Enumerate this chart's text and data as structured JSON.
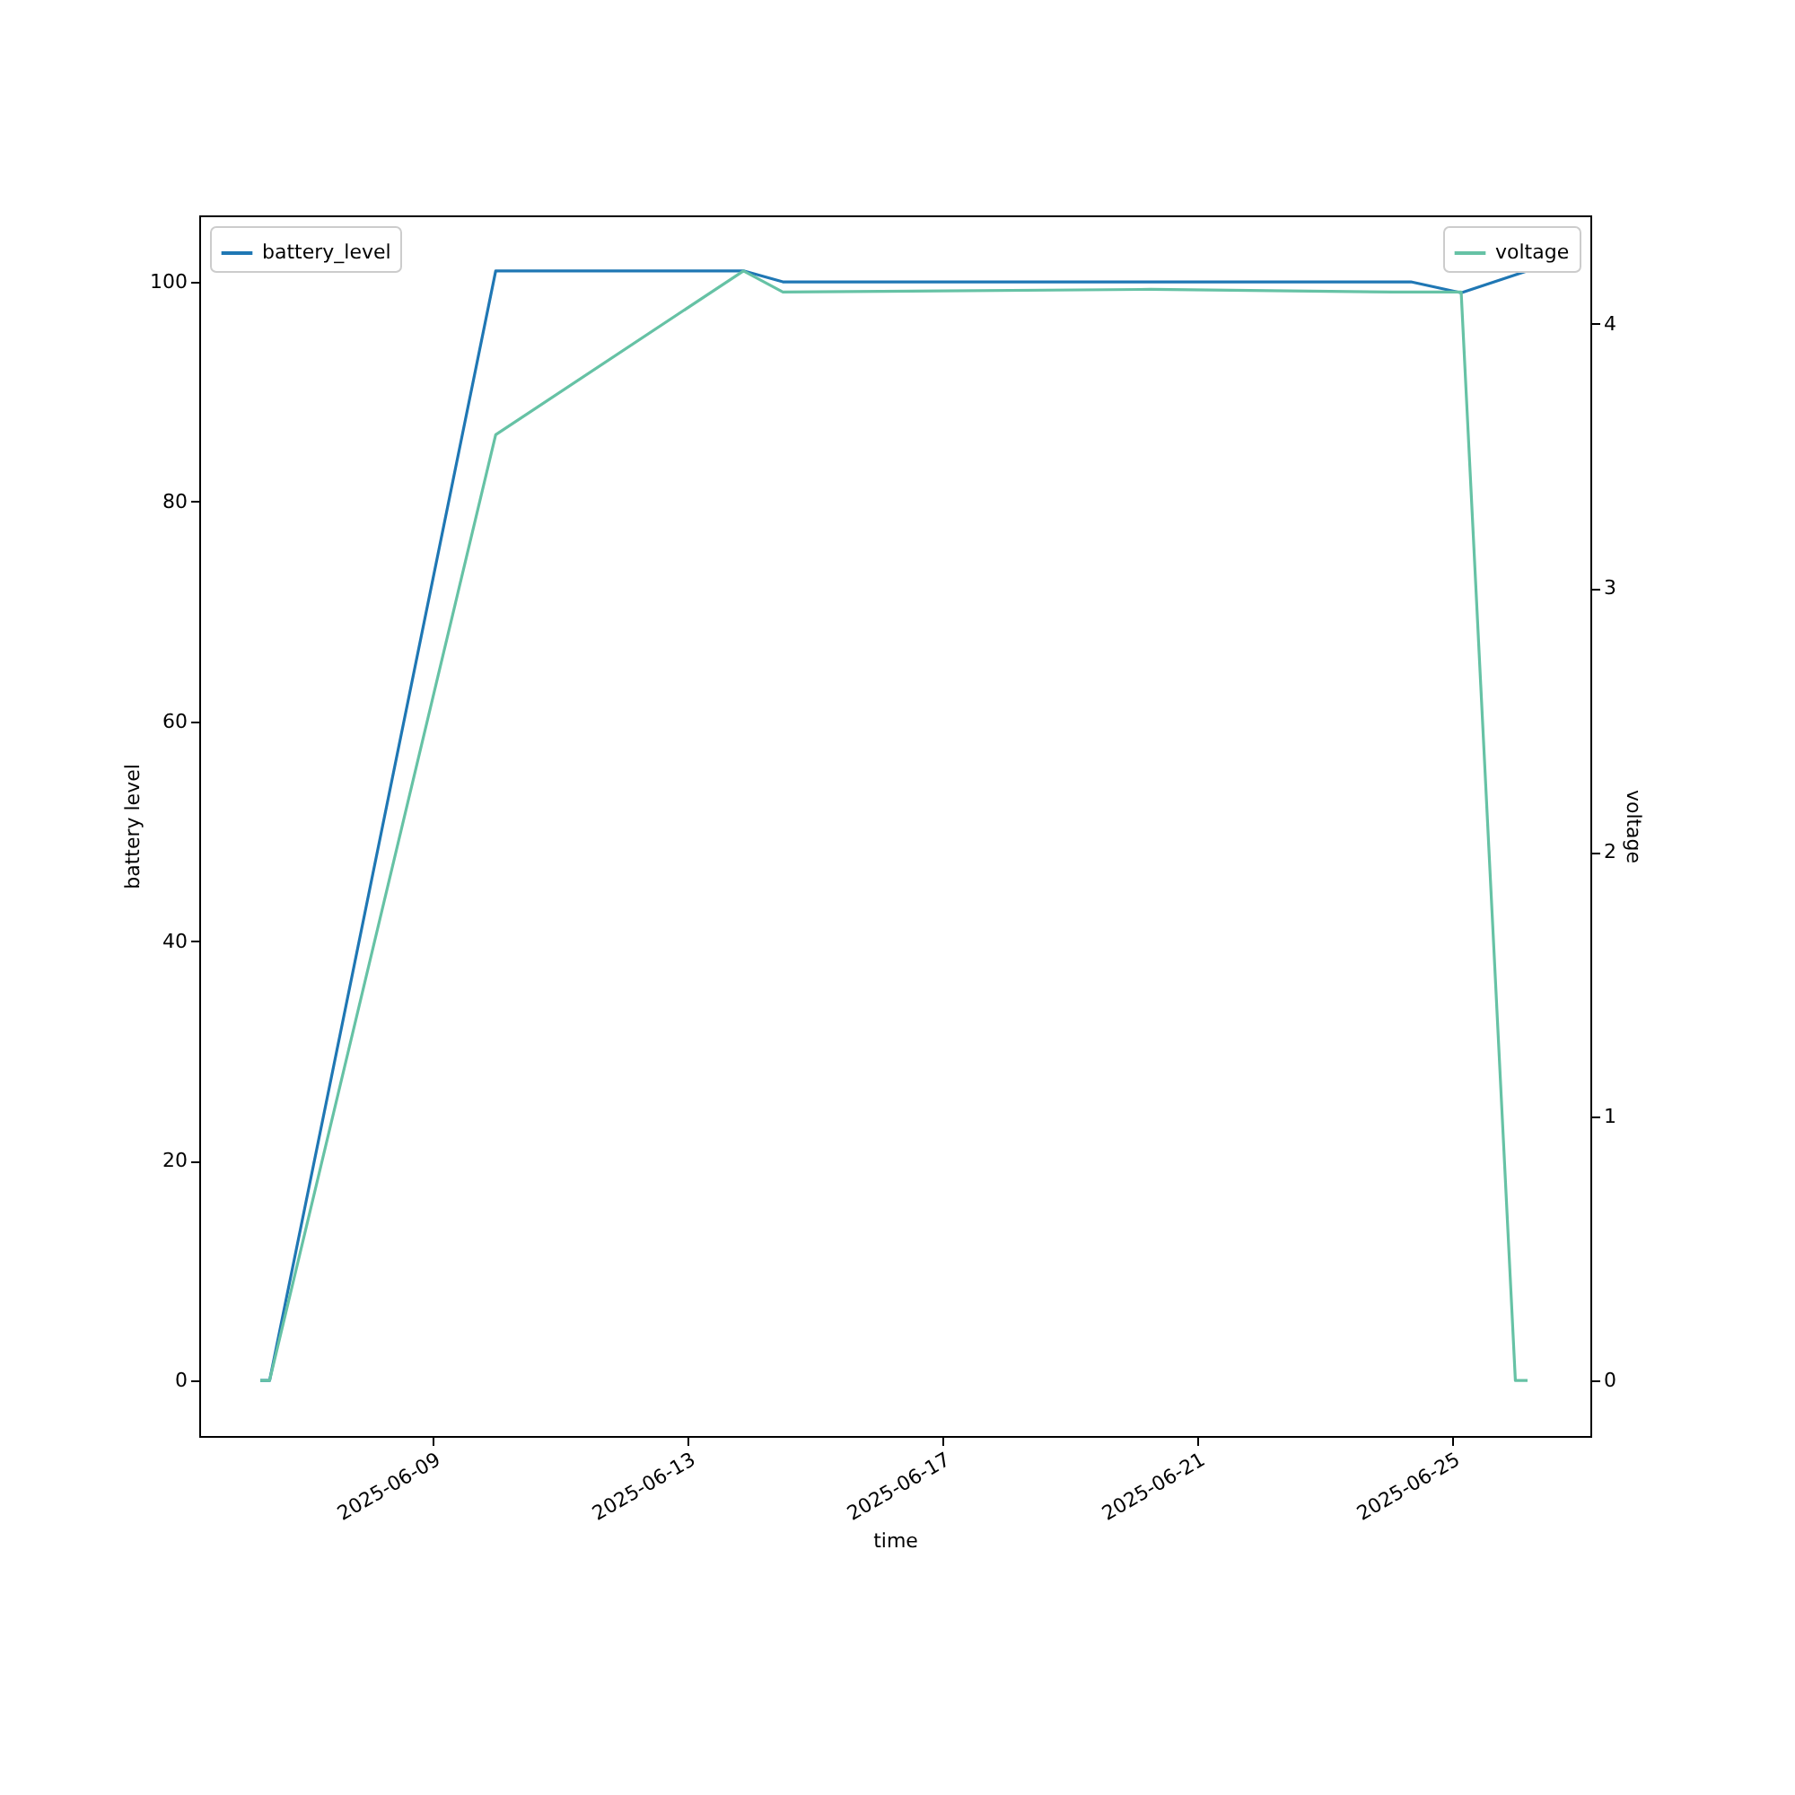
{
  "chart_data": {
    "type": "line",
    "xlabel": "time",
    "ylabel": "battery level",
    "y2label": "voltage",
    "xlim": [
      "2025-06-05T08:00",
      "2025-06-27T04:00"
    ],
    "xticks": [
      {
        "value": "2025-06-09",
        "label": "2025-06-09"
      },
      {
        "value": "2025-06-13",
        "label": "2025-06-13"
      },
      {
        "value": "2025-06-17",
        "label": "2025-06-17"
      },
      {
        "value": "2025-06-21",
        "label": "2025-06-21"
      },
      {
        "value": "2025-06-25",
        "label": "2025-06-25"
      }
    ],
    "ylim": [
      -5.05,
      106.05
    ],
    "yticks": [
      0,
      20,
      40,
      60,
      80,
      100
    ],
    "y2lim": [
      -0.21,
      4.41
    ],
    "y2ticks": [
      0,
      1,
      2,
      3,
      4
    ],
    "legend": "top",
    "grid": false,
    "line_style": "solid",
    "marker": "none",
    "series": [
      {
        "name": "battery_level",
        "color": "#1f77b4",
        "x": [
          "2025-06-06T07:00",
          "2025-06-06T10:30",
          "2025-06-09T23:40",
          "2025-06-13T21:00",
          "2025-06-14T11:50",
          "2025-06-24T08:25",
          "2025-06-25T03:20",
          "2025-06-26T04:20"
        ],
        "values": [
          0,
          0,
          101,
          101,
          100,
          100,
          99,
          101
        ]
      },
      {
        "name": "voltage",
        "color": "#66c2a5",
        "axis": "y2",
        "x": [
          "2025-06-06T07:00",
          "2025-06-06T10:30",
          "2025-06-09T23:40",
          "2025-06-13T21:00",
          "2025-06-14T11:50",
          "2025-06-20T06:25",
          "2025-06-24T01:40",
          "2025-06-25T03:20",
          "2025-06-25T23:45",
          "2025-06-26T04:20"
        ],
        "values": [
          0,
          0,
          3.58,
          4.2,
          4.12,
          4.13,
          4.12,
          4.12,
          0,
          0
        ]
      }
    ]
  }
}
